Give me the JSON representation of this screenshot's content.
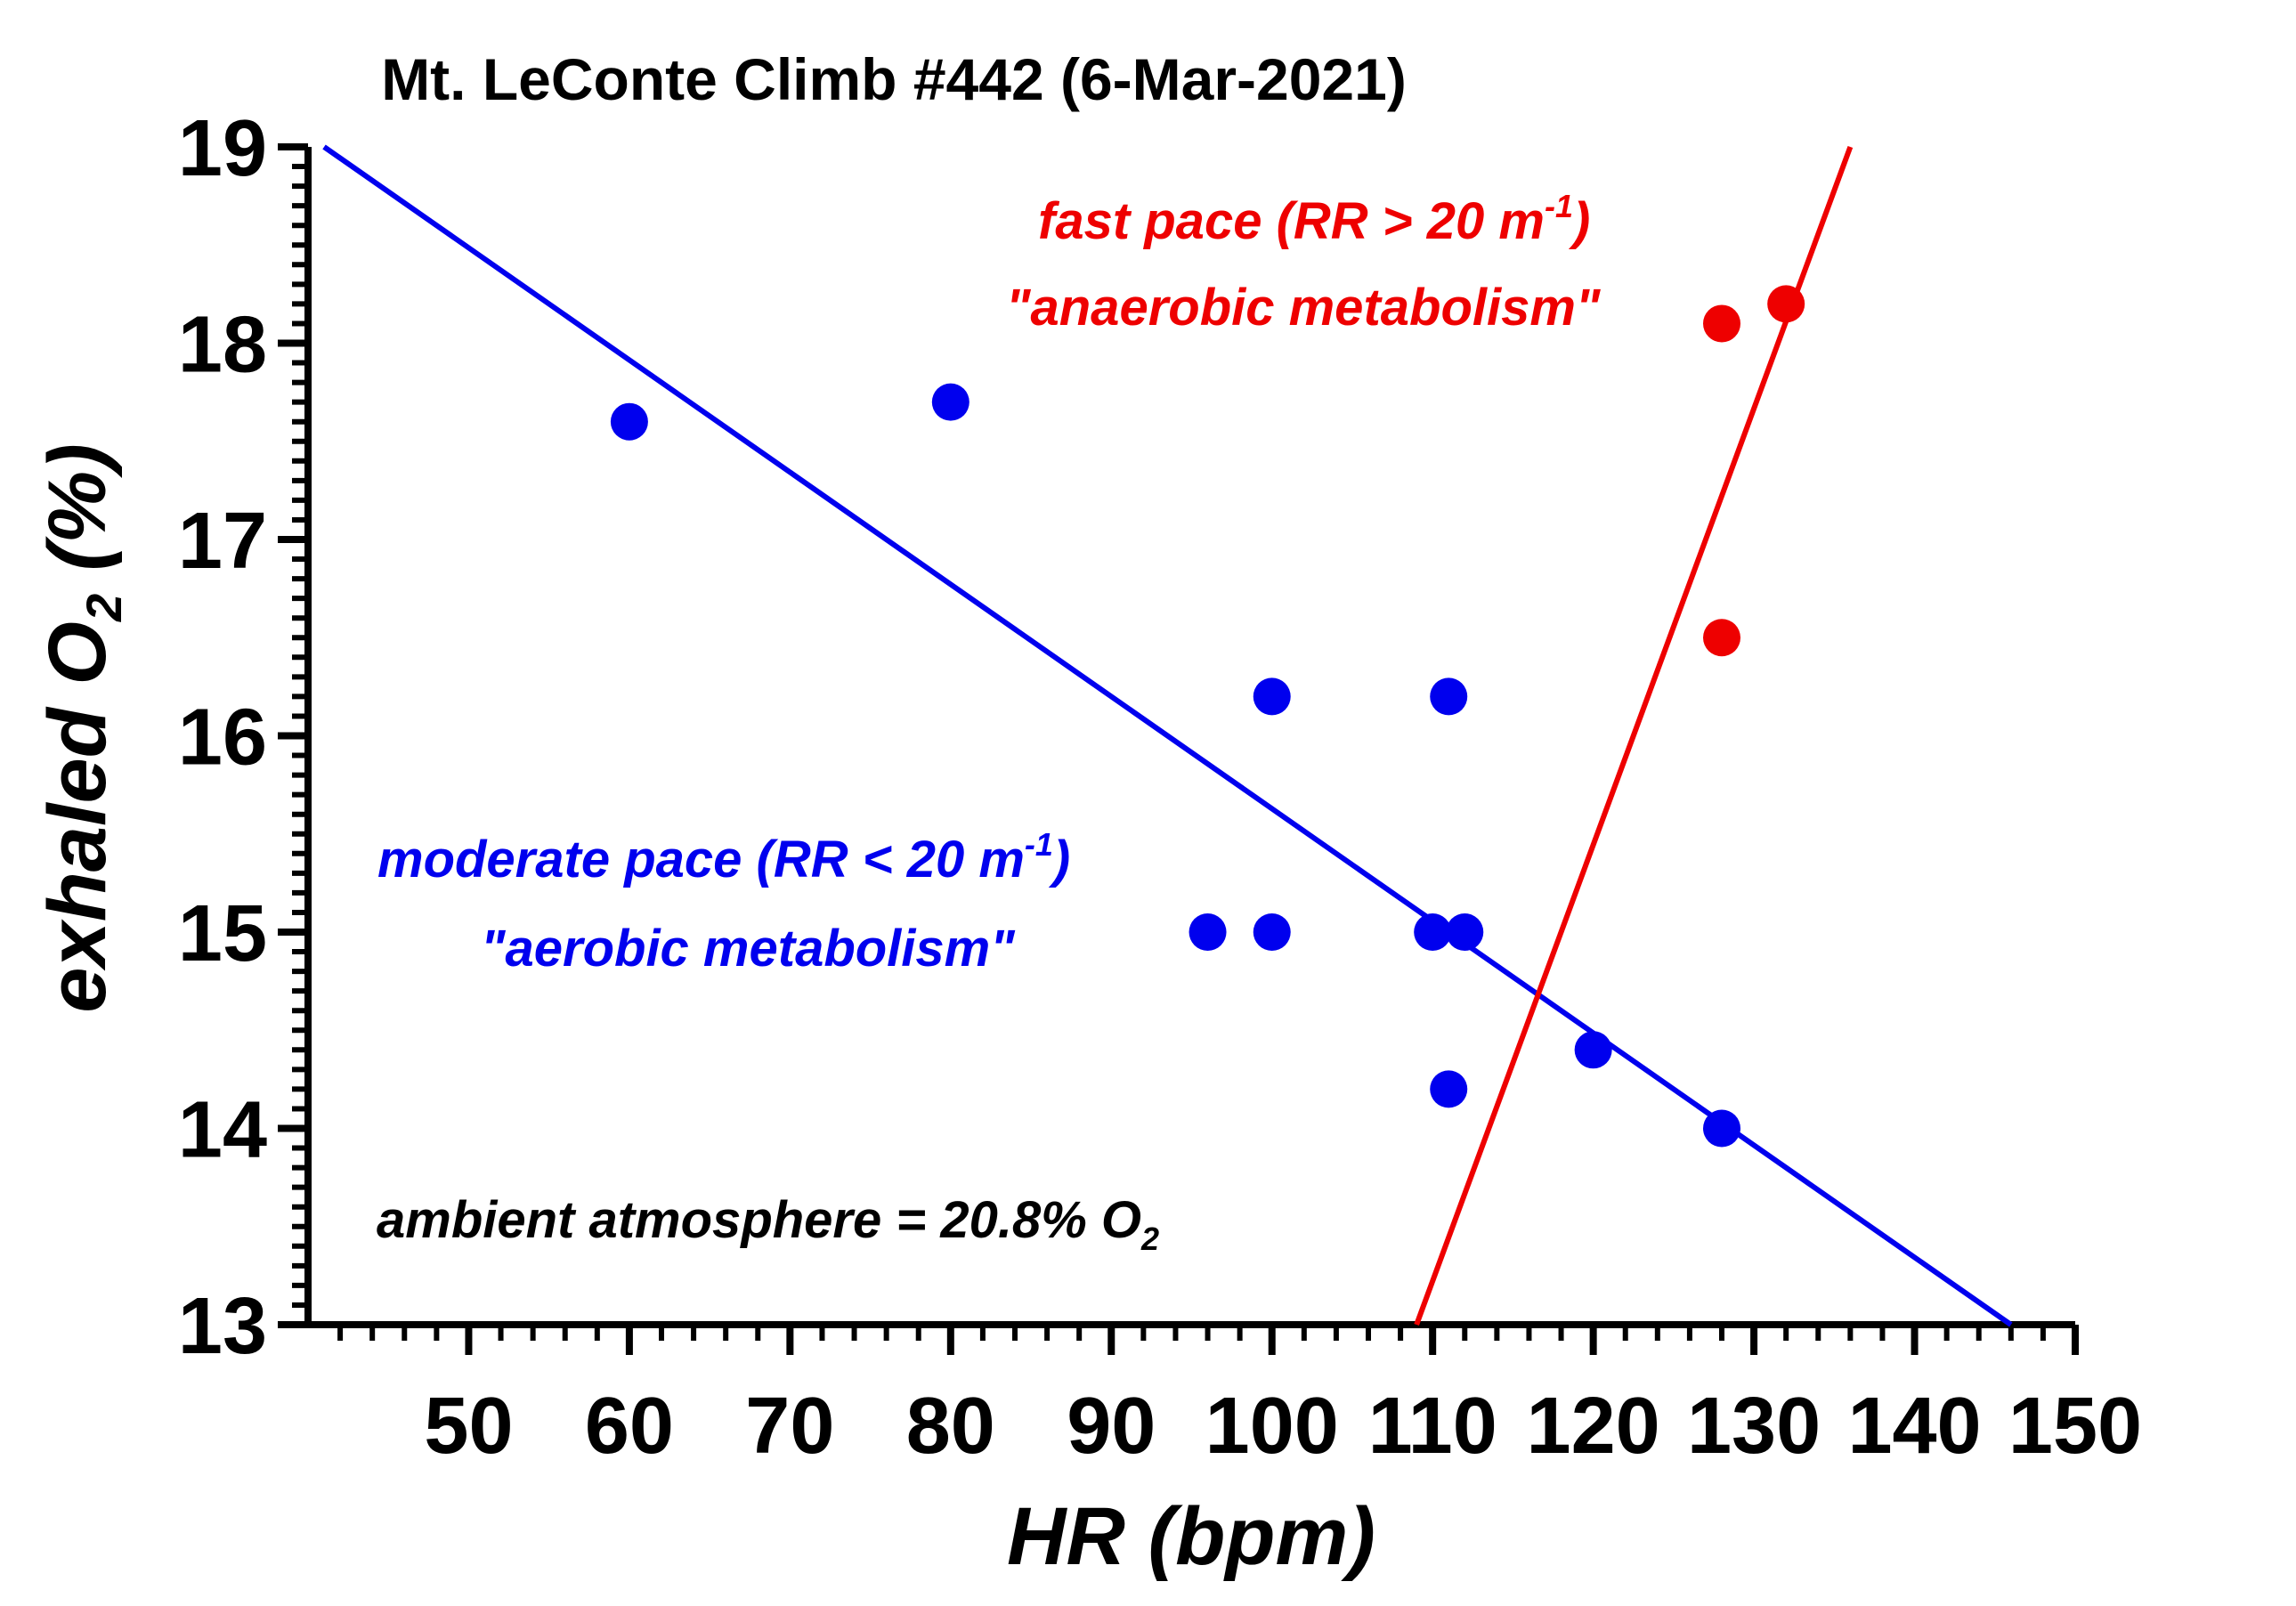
{
  "chart_data": {
    "type": "scatter",
    "title": "Mt. LeConte Climb #442 (6-Mar-2021)",
    "xlabel": "HR (bpm)",
    "ylabel": {
      "main": "exhaled O",
      "sub": "2",
      "suffix": " (%)"
    },
    "xlim": [
      40,
      150
    ],
    "ylim": [
      13,
      19
    ],
    "xticks": [
      50,
      60,
      70,
      80,
      90,
      100,
      110,
      120,
      130,
      140,
      150
    ],
    "yticks": [
      13,
      14,
      15,
      16,
      17,
      18,
      19
    ],
    "grid": false,
    "colors": {
      "moderate": "#0000ee",
      "fast": "#ee0000",
      "axis": "#000000"
    },
    "series": [
      {
        "points": [
          {
            "x": 60,
            "y": 17.6
          },
          {
            "x": 80,
            "y": 17.7
          },
          {
            "x": 100,
            "y": 16.2
          },
          {
            "x": 111,
            "y": 16.2
          },
          {
            "x": 96,
            "y": 15.0
          },
          {
            "x": 100,
            "y": 15.0
          },
          {
            "x": 110,
            "y": 15.0
          },
          {
            "x": 112,
            "y": 15.0
          },
          {
            "x": 111,
            "y": 14.2
          },
          {
            "x": 120,
            "y": 14.4
          },
          {
            "x": 128,
            "y": 14.0
          }
        ],
        "fit": [
          {
            "x": 41,
            "y": 19.0
          },
          {
            "x": 146,
            "y": 13.0
          }
        ]
      },
      {
        "points": [
          {
            "x": 128,
            "y": 18.1
          },
          {
            "x": 132,
            "y": 18.2
          },
          {
            "x": 128,
            "y": 16.5
          }
        ],
        "fit": [
          {
            "x": 109,
            "y": 13.0
          },
          {
            "x": 136,
            "y": 19.0
          }
        ]
      }
    ],
    "annotations": {
      "fast_line1": "fast pace (RR > 20 m",
      "fast_sup": "-1",
      "fast_close": ")",
      "fast_line2": "\"anaerobic metabolism\"",
      "moderate_line1": "moderate pace (RR < 20 m",
      "moderate_sup": "-1",
      "moderate_close": ")",
      "moderate_line2": "\"aerobic metabolism\"",
      "ambient": "ambient atmosphere = 20.8% O",
      "ambient_sub": "2"
    }
  }
}
